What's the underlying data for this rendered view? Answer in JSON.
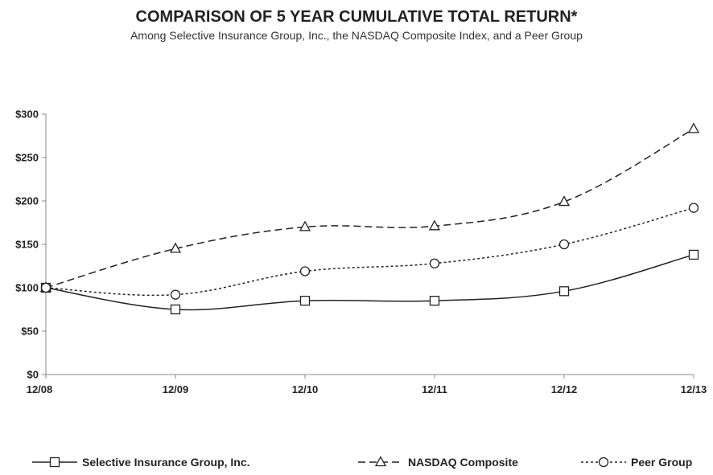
{
  "chart_data": {
    "type": "line",
    "title": "COMPARISON OF 5 YEAR CUMULATIVE TOTAL RETURN*",
    "subtitle": "Among Selective Insurance Group, Inc., the NASDAQ  Composite Index, and a Peer Group",
    "categories": [
      "12/08",
      "12/09",
      "12/10",
      "12/11",
      "12/12",
      "12/13"
    ],
    "ylim": [
      0,
      300
    ],
    "yticks": [
      0,
      50,
      100,
      150,
      200,
      250,
      300
    ],
    "ytick_labels": [
      "$0",
      "$50",
      "$100",
      "$150",
      "$200",
      "$250",
      "$300"
    ],
    "grid": false,
    "legend_position": "bottom",
    "series": [
      {
        "name": "Selective Insurance Group, Inc.",
        "values": [
          100,
          75,
          85,
          85,
          96,
          138
        ],
        "marker": "square",
        "dash": "solid",
        "color": "#222222"
      },
      {
        "name": "NASDAQ Composite",
        "values": [
          100,
          145,
          170,
          171,
          199,
          283
        ],
        "marker": "triangle",
        "dash": "dashed",
        "color": "#222222"
      },
      {
        "name": "Peer Group",
        "values": [
          100,
          92,
          119,
          128,
          150,
          192
        ],
        "marker": "circle",
        "dash": "dotted",
        "color": "#222222"
      }
    ]
  }
}
